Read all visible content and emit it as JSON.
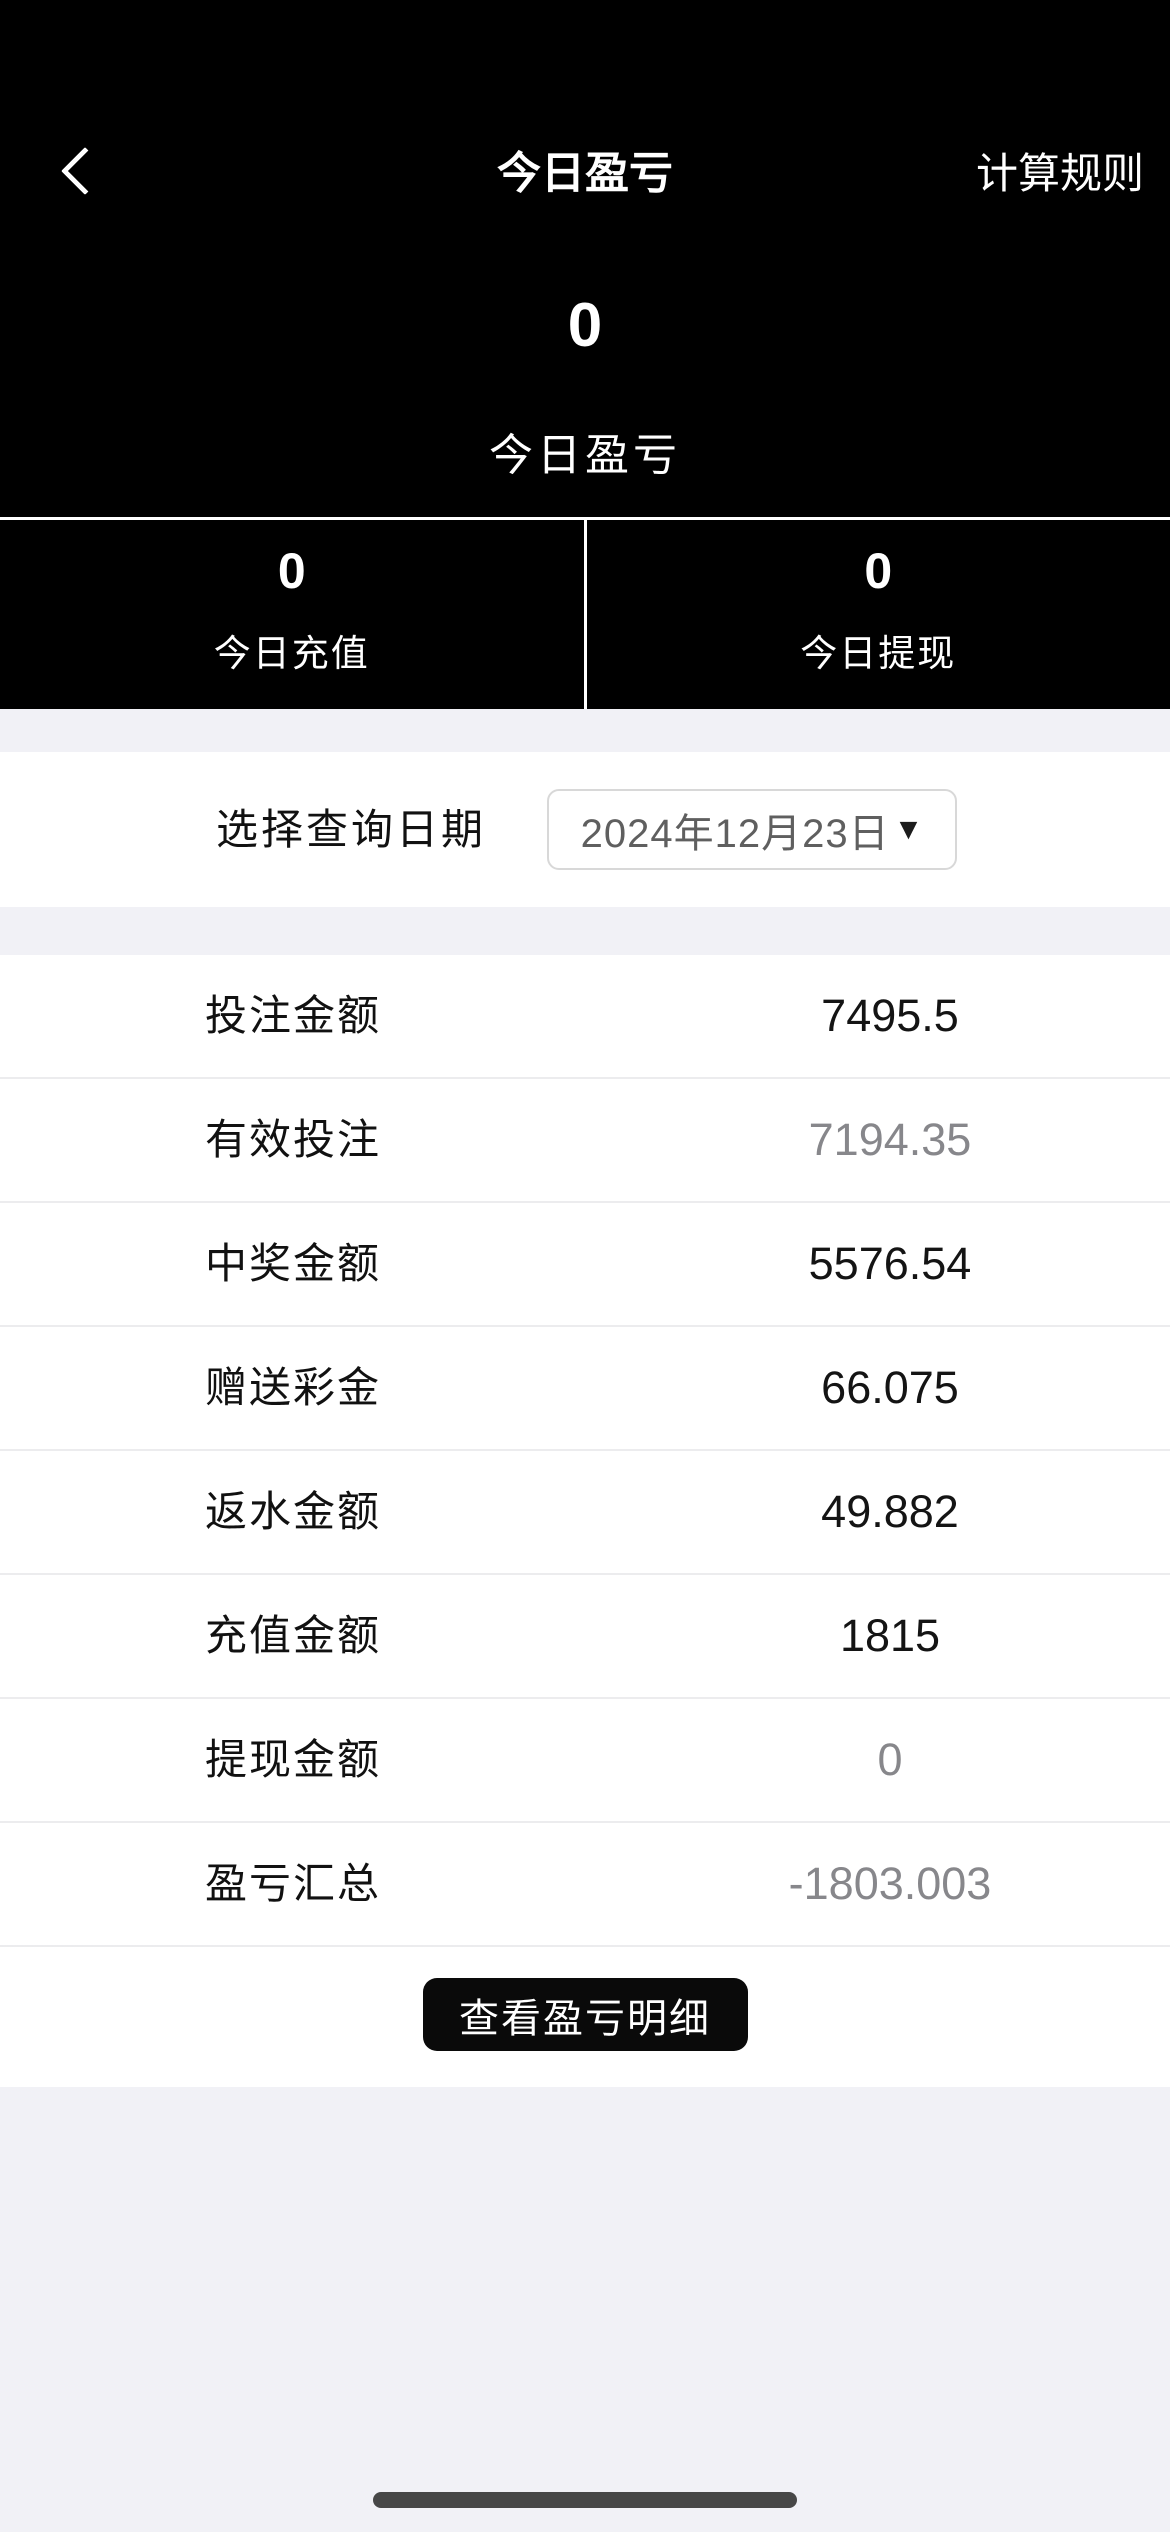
{
  "nav": {
    "title": "今日盈亏",
    "rules_label": "计算规则",
    "back_icon": "chevron-left"
  },
  "hero": {
    "value": "0",
    "label": "今日盈亏"
  },
  "panels": [
    {
      "value": "0",
      "label": "今日充值"
    },
    {
      "value": "0",
      "label": "今日提现"
    }
  ],
  "date_picker": {
    "label": "选择查询日期",
    "value": "2024年12月23日",
    "dropdown_icon": "▼"
  },
  "summary_rows": [
    {
      "label": "投注金额",
      "value": "7495.5"
    },
    {
      "label": "有效投注",
      "value": "7194.35"
    },
    {
      "label": "中奖金额",
      "value": "5576.54"
    },
    {
      "label": "赠送彩金",
      "value": "66.075"
    },
    {
      "label": "返水金额",
      "value": "49.882"
    },
    {
      "label": "充值金额",
      "value": "1815"
    },
    {
      "label": "提现金额",
      "value": "0"
    },
    {
      "label": "盈亏汇总",
      "value": "-1803.003"
    }
  ],
  "details_button": {
    "label": "查看盈亏明细"
  },
  "colors": {
    "header_background": "#000000",
    "header_text": "#ffffff",
    "section_gap": "#f1f1f6",
    "primary_text": "#111111",
    "muted_value_text": "#87878b",
    "date_value_text": "#5f5f5f",
    "button_background": "#0a0a0a",
    "home_indicator": "#474747"
  }
}
